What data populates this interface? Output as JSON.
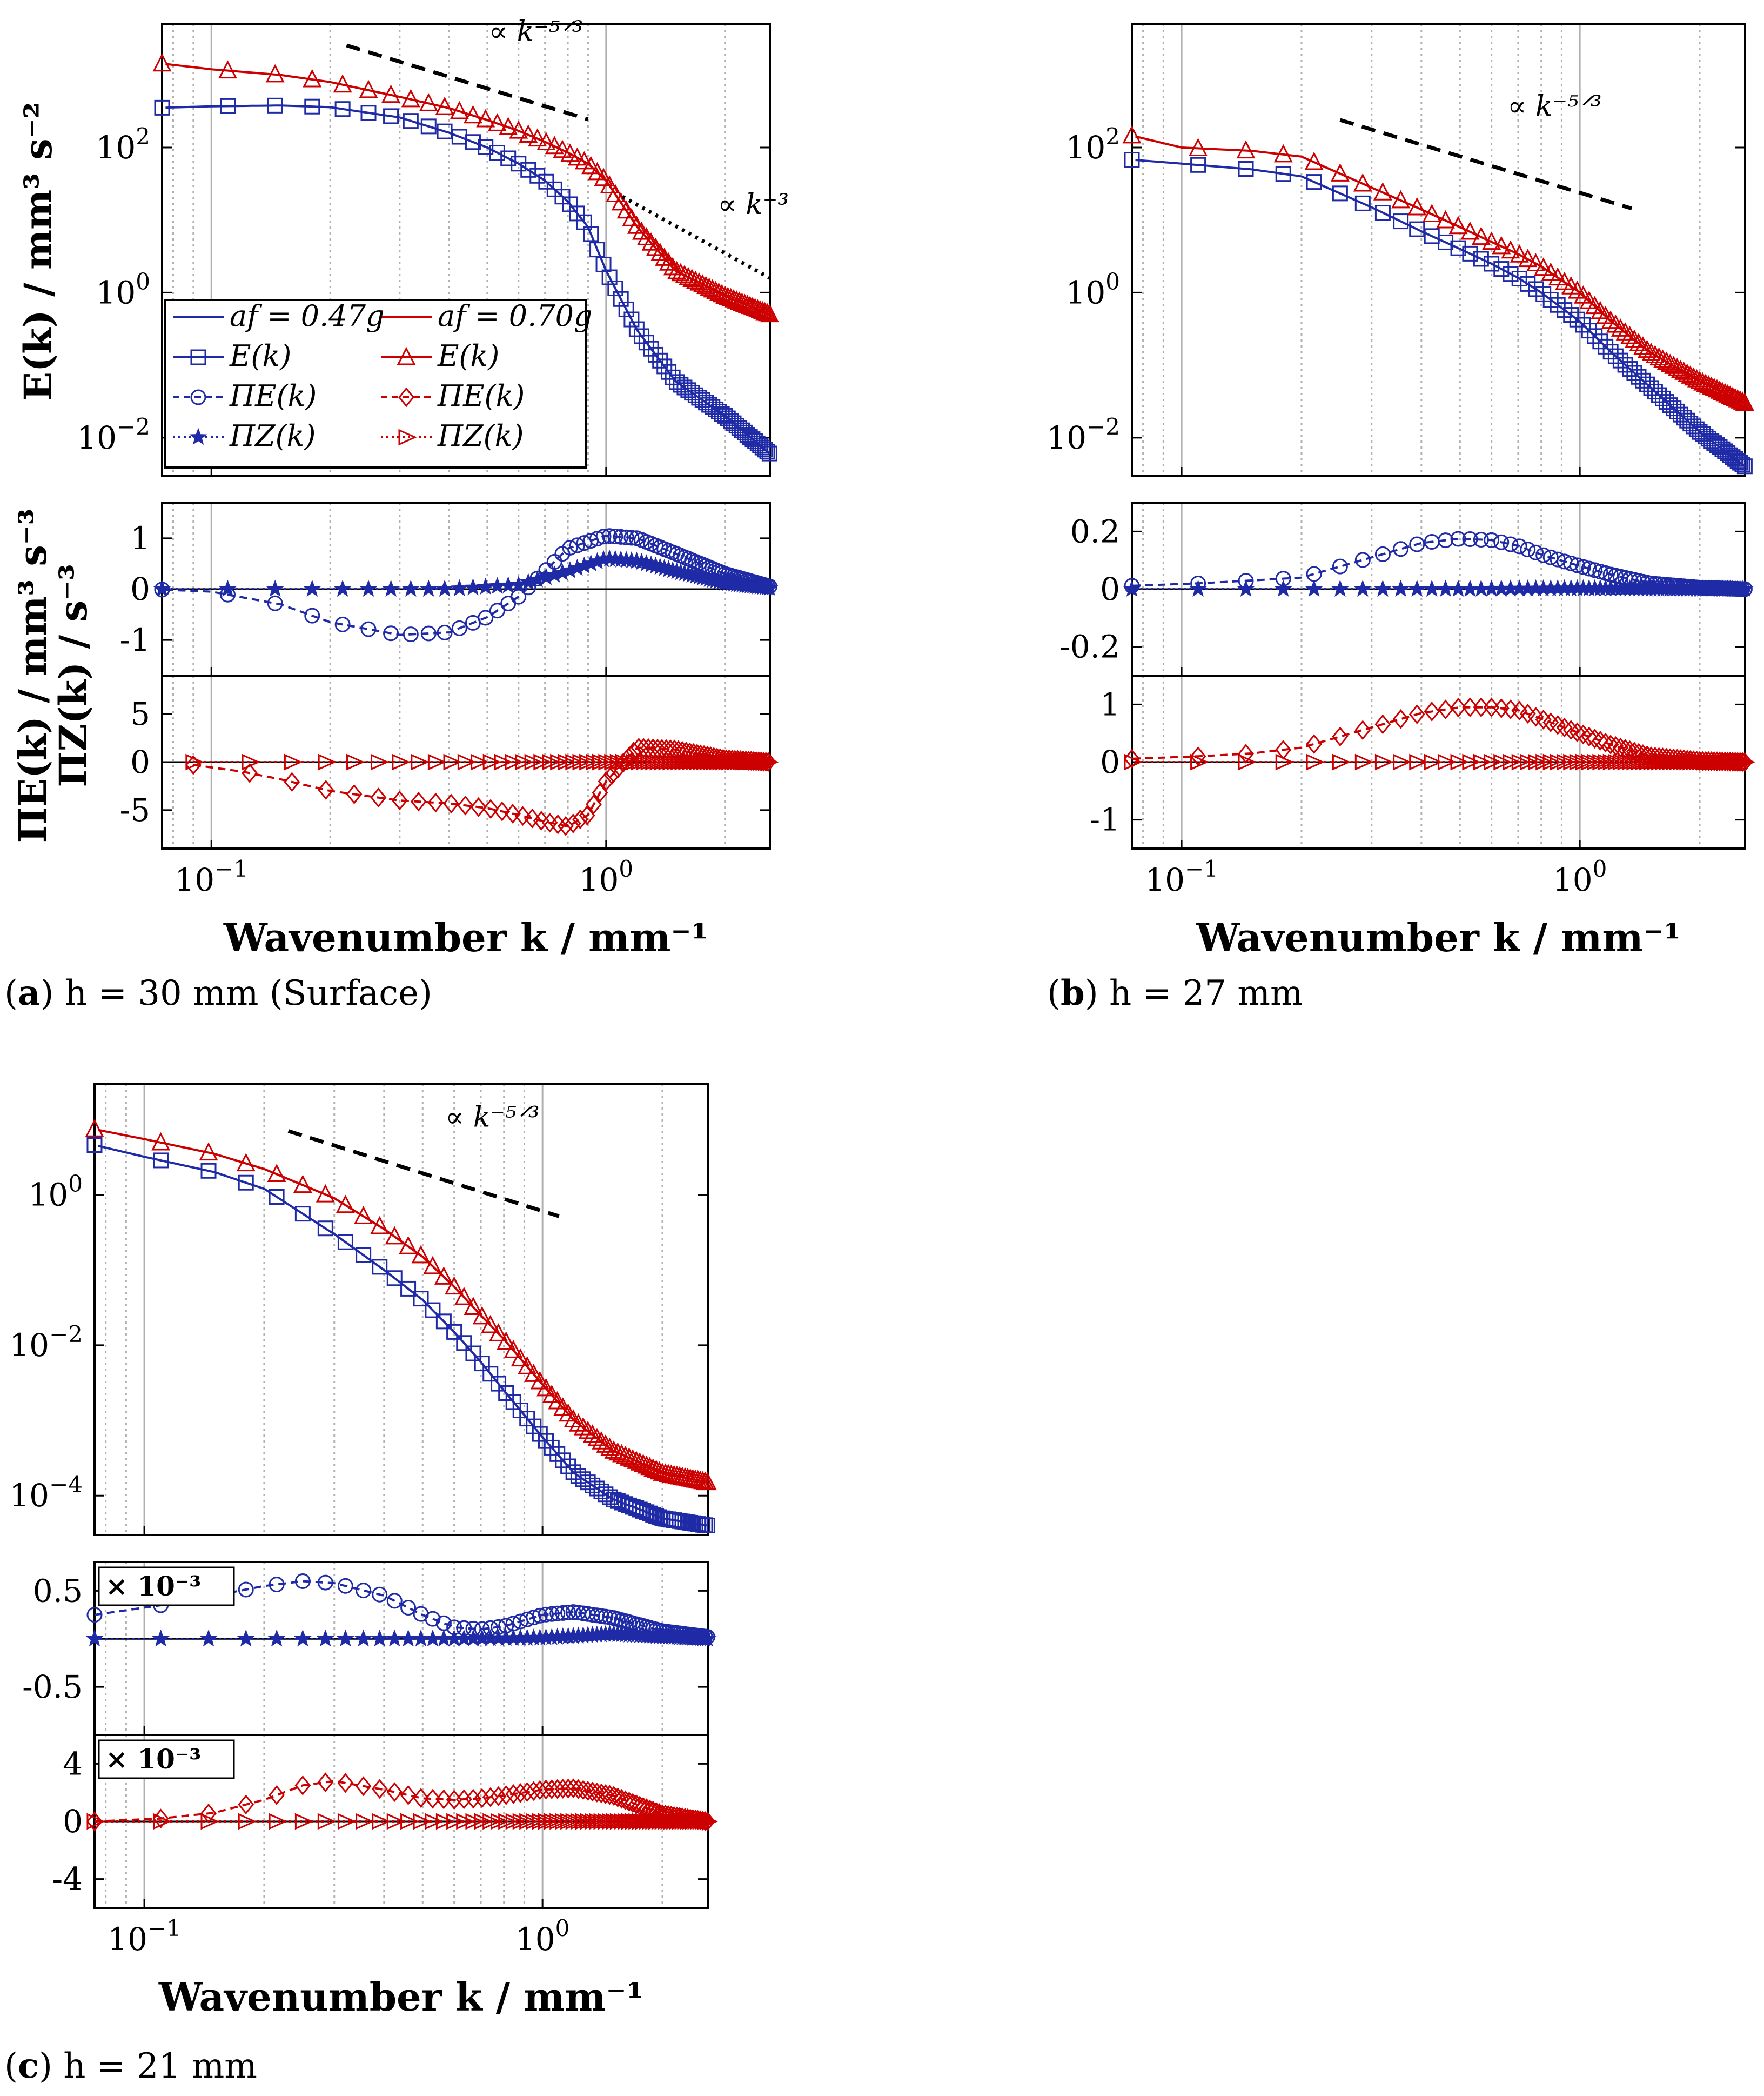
{
  "colors": {
    "blue": "#1f2aa6",
    "red": "#cc0000",
    "black": "#000000",
    "grid": "#b0b0b0"
  },
  "captions": {
    "a": {
      "letter": "a",
      "text": " h = 30 mm (Surface)"
    },
    "b": {
      "letter": "b",
      "text": " h = 27 mm"
    },
    "c": {
      "letter": "c",
      "text": " h = 21 mm"
    }
  },
  "labels": {
    "ylabel_energy": "E(k) / mm³ s⁻²",
    "ylabel_flux_1": "ΠE(k) / mm³ s⁻³",
    "ylabel_flux_2": "ΠZ(k) / s⁻³",
    "xlabel": "Wavenumber k / mm⁻¹",
    "slope_53": "∝ k⁻⁵ᐟ³",
    "slope_3": "∝ k⁻³",
    "multiplier": "× 10⁻³"
  },
  "legend": {
    "blue_line": "af = 0.47g",
    "red_line": "af = 0.70g",
    "blue_E": "E(k)",
    "red_E": "E(k)",
    "blue_PiE": "ΠE(k)",
    "red_PiE": "ΠE(k)",
    "blue_PiZ": "ΠZ(k)",
    "red_PiZ": "ΠZ(k)"
  },
  "chart_data": [
    {
      "type": "line",
      "panel": "a",
      "title": "h = 30 mm (Surface)",
      "xlabel": "Wavenumber k / mm^-1",
      "xscale": "log",
      "xlim": [
        0.075,
        2.6
      ],
      "xticks": [
        "10^-1",
        "10^0"
      ],
      "energy": {
        "ylabel": "E(k) / mm^3 s^-2",
        "yscale": "log",
        "ylim": [
          0.003,
          5000
        ],
        "yticks": [
          "10^2",
          "10^0",
          "10^-2"
        ],
        "series": [
          {
            "name": "af = 0.47g E(k)",
            "color": "blue",
            "k": [
              0.07,
              0.1,
              0.15,
              0.2,
              0.3,
              0.4,
              0.5,
              0.6,
              0.7,
              0.8,
              0.9,
              1.0,
              1.2,
              1.5,
              2.0,
              2.6
            ],
            "E": [
              350,
              370,
              380,
              360,
              260,
              160,
              100,
              60,
              35,
              18,
              8,
              2,
              0.3,
              0.06,
              0.02,
              0.006
            ]
          },
          {
            "name": "af = 0.70g E(k)",
            "color": "red",
            "k": [
              0.07,
              0.1,
              0.15,
              0.2,
              0.3,
              0.4,
              0.5,
              0.6,
              0.7,
              0.8,
              0.9,
              1.0,
              1.2,
              1.5,
              2.0,
              2.6
            ],
            "E": [
              1500,
              1200,
              1000,
              800,
              500,
              350,
              240,
              170,
              120,
              85,
              60,
              35,
              8,
              2,
              0.9,
              0.5
            ]
          }
        ],
        "slopes": [
          {
            "label": "∝ k^-5/3",
            "style": "dashed",
            "k": [
              0.22,
              0.9
            ]
          },
          {
            "label": "∝ k^-3",
            "style": "dotted",
            "k": [
              1.1,
              2.6
            ]
          }
        ]
      },
      "flux_E": {
        "ylim": [
          -1.7,
          1.7
        ],
        "yticks": [
          1,
          0,
          -1
        ],
        "series": [
          {
            "name": "0.47g ΠE(k)",
            "color": "blue",
            "k": [
              0.07,
              0.1,
              0.15,
              0.2,
              0.3,
              0.4,
              0.5,
              0.6,
              0.7,
              0.8,
              1.0,
              1.2,
              1.5,
              2.0,
              2.6
            ],
            "v": [
              0,
              -0.05,
              -0.3,
              -0.65,
              -0.9,
              -0.85,
              -0.55,
              -0.15,
              0.35,
              0.8,
              1.05,
              1.0,
              0.7,
              0.3,
              0.05
            ]
          },
          {
            "name": "0.47g ΠZ(k)",
            "color": "blue",
            "k": [
              0.07,
              0.2,
              0.4,
              0.6,
              0.8,
              1.0,
              1.2,
              1.5,
              2.0,
              2.6
            ],
            "v": [
              0,
              0,
              0,
              0.08,
              0.35,
              0.6,
              0.55,
              0.35,
              0.12,
              0.02
            ]
          }
        ]
      },
      "flux_Z": {
        "ylim": [
          -9,
          9
        ],
        "yticks": [
          5,
          0,
          -5
        ],
        "series": [
          {
            "name": "0.70g ΠE(k)",
            "color": "red",
            "k": [
              0.09,
              0.12,
              0.15,
              0.2,
              0.3,
              0.4,
              0.5,
              0.6,
              0.7,
              0.8,
              0.9,
              1.0,
              1.2,
              1.5,
              2.0,
              2.6
            ],
            "v": [
              -0.3,
              -1,
              -1.8,
              -3,
              -4,
              -4.3,
              -4.8,
              -5.5,
              -6.2,
              -6.7,
              -5.5,
              -2,
              1.5,
              1.3,
              0.3,
              0
            ]
          },
          {
            "name": "0.70g ΠZ(k)",
            "color": "red",
            "k": [
              0.09,
              0.2,
              0.4,
              0.6,
              0.8,
              1.0,
              1.2,
              1.5,
              2.0,
              2.6
            ],
            "v": [
              0,
              0,
              0,
              0,
              0,
              0,
              0,
              0,
              0,
              0
            ]
          }
        ]
      }
    },
    {
      "type": "line",
      "panel": "b",
      "title": "h = 27 mm",
      "xscale": "log",
      "xlim": [
        0.075,
        2.6
      ],
      "energy": {
        "yscale": "log",
        "ylim": [
          0.003,
          5000
        ],
        "yticks": [
          "10^2",
          "10^0",
          "10^-2"
        ],
        "series": [
          {
            "name": "0.47g E(k)",
            "color": "blue",
            "k": [
              0.07,
              0.1,
              0.15,
              0.2,
              0.3,
              0.4,
              0.5,
              0.6,
              0.7,
              0.8,
              1.0,
              1.2,
              1.5,
              2.0,
              2.6
            ],
            "E": [
              70,
              60,
              50,
              40,
              15,
              7,
              4,
              2.5,
              1.6,
              1,
              0.4,
              0.15,
              0.05,
              0.012,
              0.004
            ]
          },
          {
            "name": "0.70g E(k)",
            "color": "red",
            "k": [
              0.07,
              0.1,
              0.15,
              0.2,
              0.3,
              0.4,
              0.5,
              0.6,
              0.7,
              0.8,
              1.0,
              1.2,
              1.5,
              2.0,
              2.6
            ],
            "E": [
              160,
              100,
              90,
              75,
              28,
              14,
              8,
              5,
              3.4,
              2.3,
              1,
              0.4,
              0.15,
              0.06,
              0.03
            ]
          }
        ],
        "slopes": [
          {
            "label": "∝ k^-5/3",
            "style": "dashed",
            "k": [
              0.25,
              1.35
            ]
          }
        ]
      },
      "flux_E": {
        "ylim": [
          -0.3,
          0.3
        ],
        "yticks": [
          0.2,
          0,
          -0.2
        ],
        "series": [
          {
            "name": "0.47g ΠE(k)",
            "color": "blue",
            "k": [
              0.07,
              0.11,
              0.15,
              0.2,
              0.3,
              0.4,
              0.5,
              0.6,
              0.7,
              0.8,
              1.0,
              1.2,
              1.5,
              2.0,
              2.6
            ],
            "v": [
              0.01,
              0.02,
              0.03,
              0.04,
              0.11,
              0.16,
              0.175,
              0.17,
              0.15,
              0.12,
              0.08,
              0.05,
              0.02,
              0.005,
              0
            ]
          },
          {
            "name": "0.47g ΠZ(k)",
            "color": "blue",
            "k": [
              0.07,
              0.2,
              0.5,
              1.0,
              2.6
            ],
            "v": [
              0,
              0,
              0,
              0.002,
              0
            ]
          }
        ]
      },
      "flux_Z": {
        "ylim": [
          -1.5,
          1.5
        ],
        "yticks": [
          1,
          0,
          -1
        ],
        "series": [
          {
            "name": "0.70g ΠE(k)",
            "color": "red",
            "k": [
              0.07,
              0.11,
              0.15,
              0.2,
              0.3,
              0.4,
              0.5,
              0.6,
              0.7,
              0.8,
              1.0,
              1.2,
              1.5,
              2.0,
              2.6
            ],
            "v": [
              0.05,
              0.1,
              0.15,
              0.25,
              0.6,
              0.85,
              0.95,
              0.95,
              0.9,
              0.75,
              0.5,
              0.3,
              0.1,
              0.02,
              0
            ]
          },
          {
            "name": "0.70g ΠZ(k)",
            "color": "red",
            "k": [
              0.07,
              0.2,
              0.5,
              1.0,
              2.6
            ],
            "v": [
              0,
              0,
              0,
              0,
              0
            ]
          }
        ]
      }
    },
    {
      "type": "line",
      "panel": "c",
      "title": "h = 21 mm",
      "xscale": "log",
      "xlim": [
        0.075,
        2.6
      ],
      "energy": {
        "yscale": "log",
        "ylim": [
          3e-05,
          30
        ],
        "yticks": [
          "10^0",
          "10^-2",
          "10^-4"
        ],
        "series": [
          {
            "name": "0.47g E(k)",
            "color": "blue",
            "k": [
              0.07,
              0.1,
              0.15,
              0.2,
              0.3,
              0.4,
              0.5,
              0.6,
              0.7,
              0.8,
              1.0,
              1.2,
              1.5,
              2.0,
              2.6
            ],
            "E": [
              5,
              3.2,
              2,
              1.2,
              0.3,
              0.1,
              0.04,
              0.015,
              0.006,
              0.0025,
              0.0006,
              0.0002,
              9e-05,
              5e-05,
              4e-05
            ]
          },
          {
            "name": "0.70g E(k)",
            "color": "red",
            "k": [
              0.07,
              0.1,
              0.15,
              0.2,
              0.3,
              0.4,
              0.5,
              0.6,
              0.7,
              0.8,
              1.0,
              1.2,
              1.5,
              2.0,
              2.6
            ],
            "E": [
              8,
              5.5,
              3.5,
              2.2,
              0.9,
              0.35,
              0.15,
              0.06,
              0.025,
              0.012,
              0.003,
              0.001,
              0.0004,
              0.0002,
              0.00015
            ]
          }
        ],
        "slopes": [
          {
            "label": "∝ k^-5/3",
            "style": "dashed",
            "k": [
              0.23,
              1.1
            ]
          }
        ]
      },
      "flux_E": {
        "multiplier": "× 10^-3",
        "ylim": [
          -1.0,
          0.8
        ],
        "yticks": [
          0.5,
          -0.5
        ],
        "series": [
          {
            "name": "0.47g ΠE(k)",
            "color": "blue",
            "k": [
              0.075,
              0.11,
              0.15,
              0.2,
              0.25,
              0.3,
              0.4,
              0.5,
              0.6,
              0.7,
              0.8,
              1.0,
              1.2,
              1.5,
              2.0,
              2.6
            ],
            "v": [
              0.25,
              0.35,
              0.45,
              0.55,
              0.6,
              0.58,
              0.45,
              0.25,
              0.12,
              0.1,
              0.13,
              0.25,
              0.28,
              0.22,
              0.08,
              0.02
            ]
          },
          {
            "name": "0.47g ΠZ(k)",
            "color": "blue",
            "k": [
              0.075,
              0.3,
              0.6,
              1.0,
              1.5,
              2.6
            ],
            "v": [
              0,
              0,
              0,
              0.01,
              0.05,
              0
            ]
          }
        ]
      },
      "flux_Z": {
        "multiplier": "× 10^-3",
        "ylim": [
          -6,
          6
        ],
        "yticks": [
          4,
          0,
          -4
        ],
        "series": [
          {
            "name": "0.70g ΠE(k)",
            "color": "red",
            "k": [
              0.075,
              0.11,
              0.15,
              0.2,
              0.25,
              0.3,
              0.4,
              0.5,
              0.6,
              0.7,
              0.8,
              1.0,
              1.2,
              1.5,
              2.0,
              2.6
            ],
            "v": [
              0,
              0.2,
              0.6,
              1.5,
              2.5,
              2.8,
              2.2,
              1.6,
              1.5,
              1.6,
              1.8,
              2.2,
              2.3,
              1.8,
              0.5,
              0
            ]
          },
          {
            "name": "0.70g ΠZ(k)",
            "color": "red",
            "k": [
              0.075,
              0.3,
              1.0,
              2.6
            ],
            "v": [
              0,
              0,
              0,
              0
            ]
          }
        ]
      }
    }
  ]
}
